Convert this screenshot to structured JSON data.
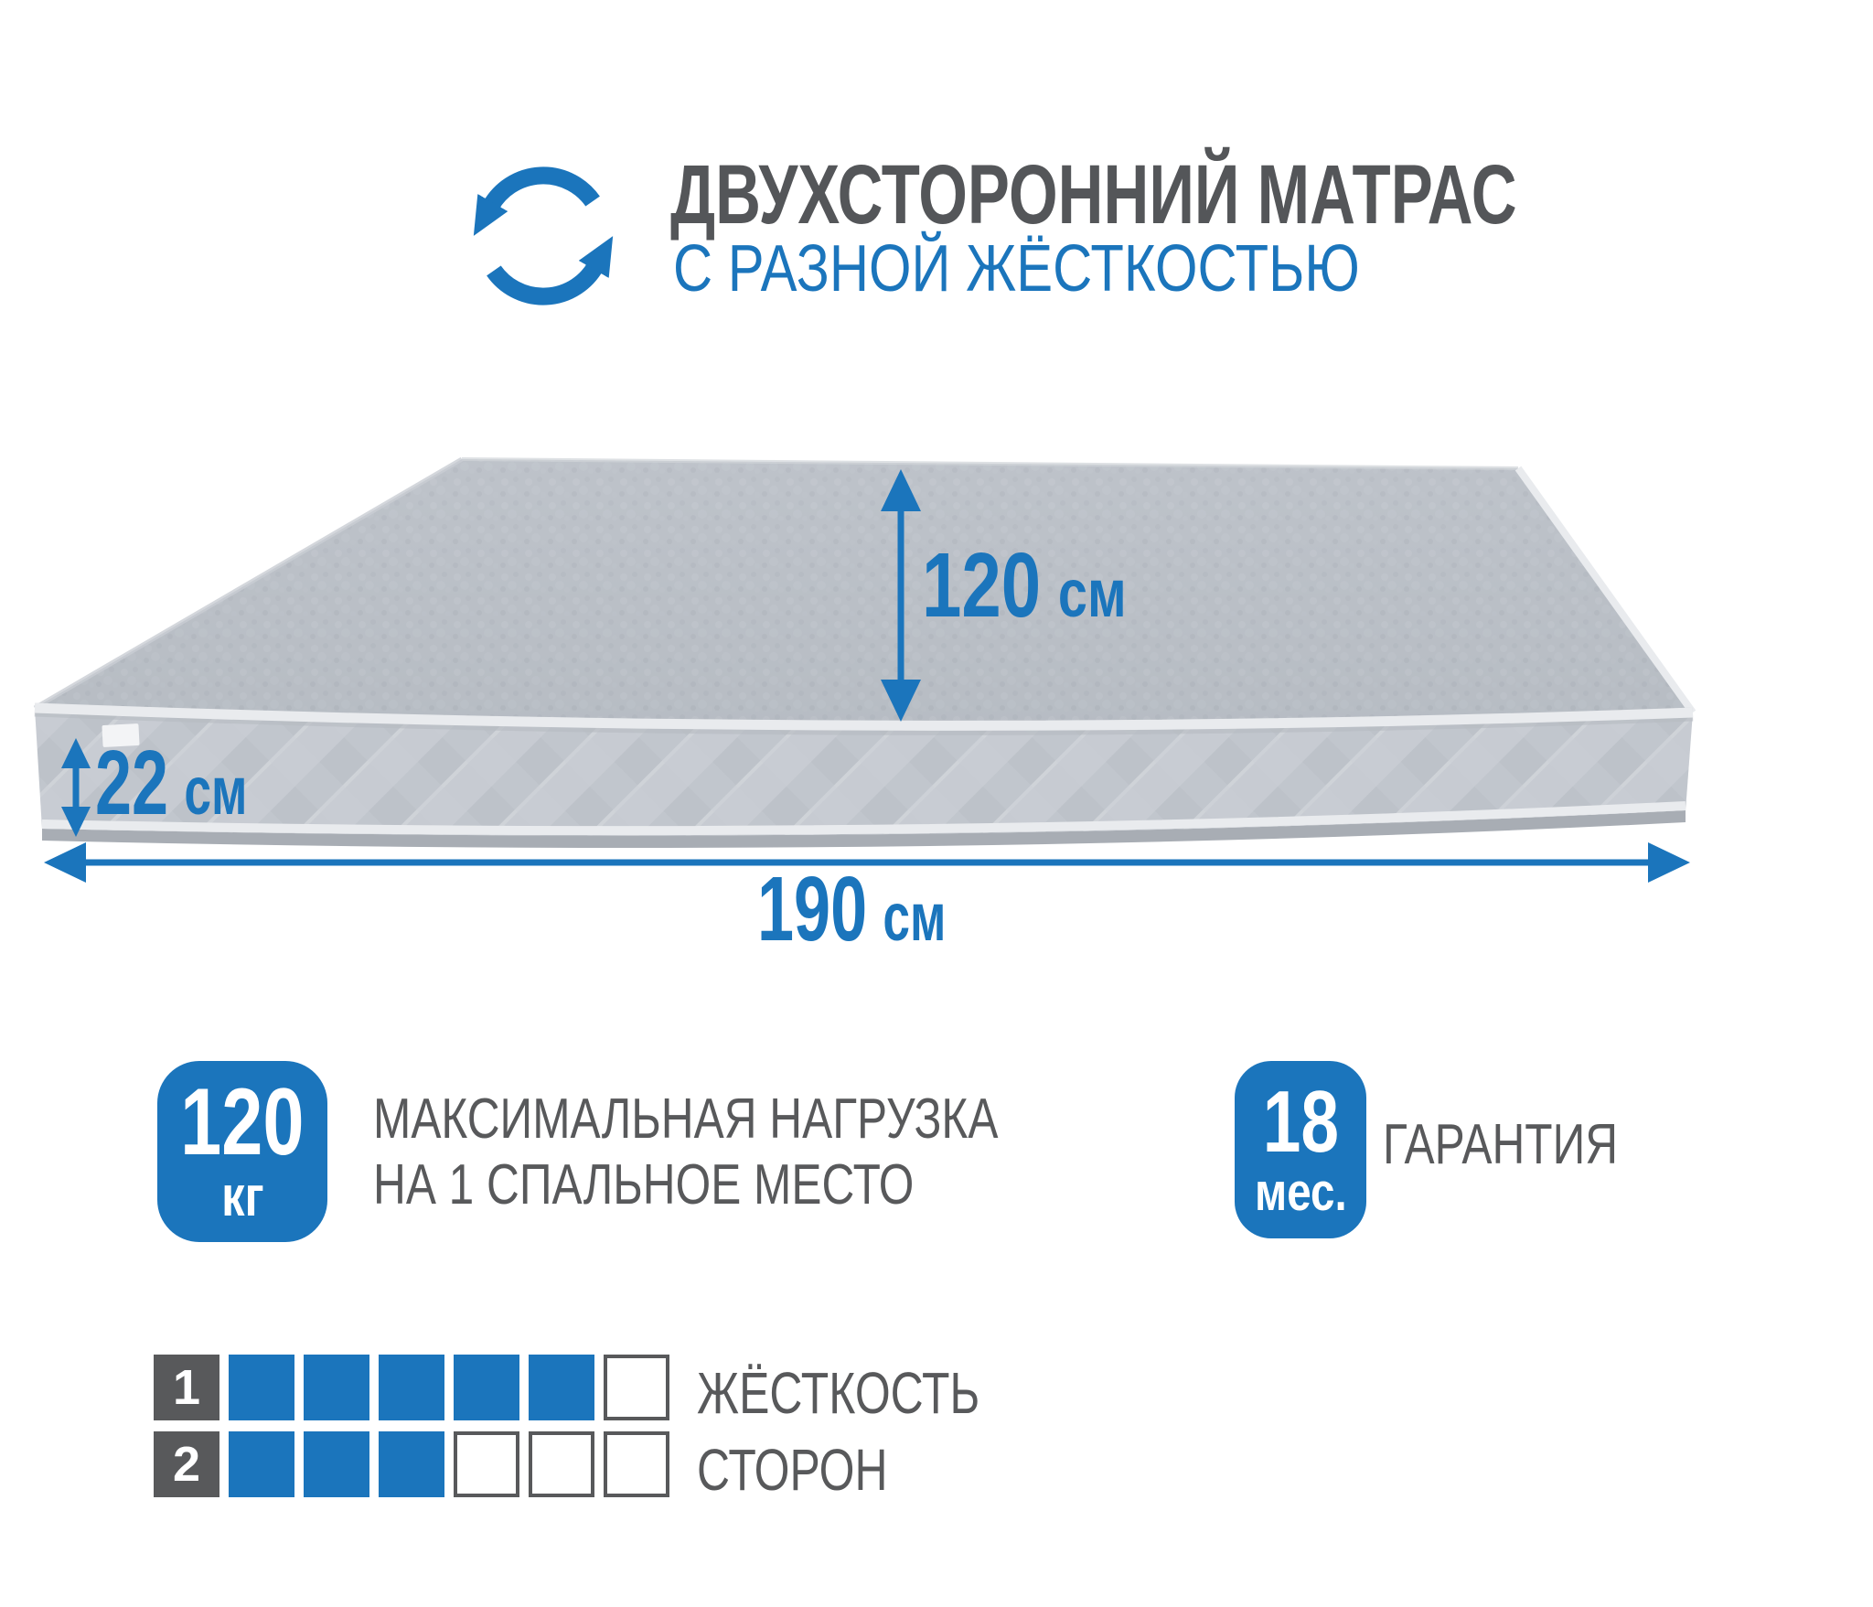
{
  "header": {
    "title": "ДВУХСТОРОННИЙ МАТРАС",
    "subtitle": "С РАЗНОЙ ЖЁСТКОСТЬЮ",
    "icon": "rotation-arrows-icon"
  },
  "diagram": {
    "width": {
      "value": "120",
      "unit": "см"
    },
    "height": {
      "value": "22",
      "unit": "см"
    },
    "length": {
      "value": "190",
      "unit": "см"
    }
  },
  "features": {
    "max_load": {
      "badge_value": "120",
      "badge_unit": "кг",
      "text_line1": "МАКСИМАЛЬНАЯ НАГРУЗКА",
      "text_line2": "НА 1 СПАЛЬНОЕ МЕСТО"
    },
    "warranty": {
      "badge_value": "18",
      "badge_unit": "мес.",
      "label": "ГАРАНТИЯ"
    }
  },
  "firmness": {
    "caption_line1": "ЖЁСТКОСТЬ",
    "caption_line2": "СТОРОН",
    "scale_max": 6,
    "rows": [
      {
        "side": "1",
        "filled": 5
      },
      {
        "side": "2",
        "filled": 3
      }
    ]
  },
  "colors": {
    "accent_blue": "#1b75bc",
    "text_gray": "#58595b"
  }
}
